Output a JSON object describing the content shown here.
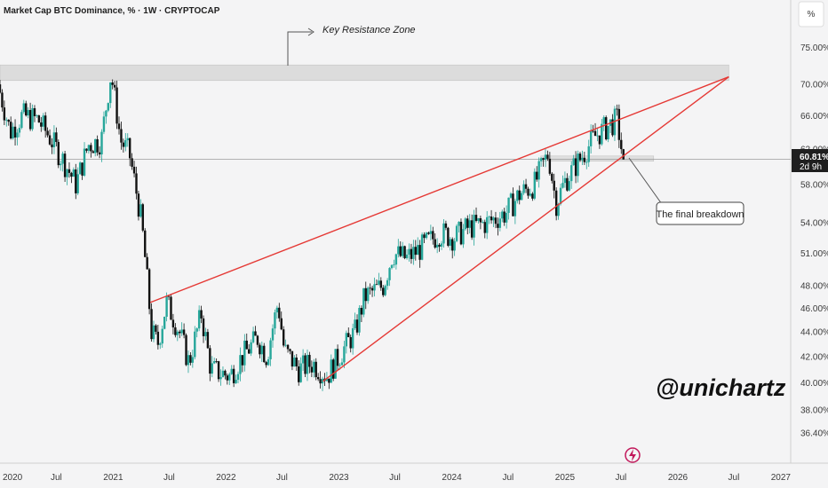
{
  "header": {
    "title": "Market Cap BTC Dominance, % · 1W · CRYPTOCAP"
  },
  "scale_button": {
    "label": "%"
  },
  "annotations": {
    "resistance_label": "Key Resistance Zone",
    "breakdown_label": "The final breakdown",
    "watermark": "@unichartz"
  },
  "price_tag": {
    "value": "60.81%",
    "countdown": "2d 9h"
  },
  "colors": {
    "up": "#26a69a",
    "down": "#111111",
    "trendline": "#e53935",
    "zone": "#d9d9d9",
    "price_tag_bg": "#1f1f1f",
    "lightning": "#c2185b"
  },
  "chart_data": {
    "type": "candlestick",
    "title": "Market Cap BTC Dominance, % · 1W · CRYPTOCAP",
    "y_scale": "log",
    "ylim": [
      34.4,
      82.0
    ],
    "xlim": [
      "2020-01-01",
      "2027-01-01"
    ],
    "y_ticks": [
      "75.00%",
      "70.00%",
      "66.00%",
      "62.00%",
      "58.00%",
      "54.00%",
      "51.00%",
      "48.00%",
      "46.00%",
      "44.00%",
      "42.00%",
      "40.00%",
      "38.00%",
      "36.40%"
    ],
    "x_ticks": [
      "2020",
      "Jul",
      "2021",
      "Jul",
      "2022",
      "Jul",
      "2023",
      "Jul",
      "2024",
      "Jul",
      "2025",
      "Jul",
      "2026",
      "Jul",
      "2027"
    ],
    "anchor_points": [
      [
        "2020-01-01",
        70.0
      ],
      [
        "2020-02-10",
        64.0
      ],
      [
        "2020-03-20",
        66.0
      ],
      [
        "2020-05-10",
        65.5
      ],
      [
        "2020-06-15",
        63.5
      ],
      [
        "2020-08-10",
        60.0
      ],
      [
        "2020-09-10",
        58.0
      ],
      [
        "2020-10-20",
        62.5
      ],
      [
        "2020-12-01",
        63.0
      ],
      [
        "2021-01-01",
        71.5
      ],
      [
        "2021-02-01",
        63.0
      ],
      [
        "2021-03-01",
        61.5
      ],
      [
        "2021-04-10",
        54.0
      ],
      [
        "2021-05-12",
        44.0
      ],
      [
        "2021-06-01",
        43.0
      ],
      [
        "2021-06-30",
        46.5
      ],
      [
        "2021-08-10",
        44.0
      ],
      [
        "2021-09-10",
        41.5
      ],
      [
        "2021-10-20",
        45.5
      ],
      [
        "2021-11-20",
        41.0
      ],
      [
        "2022-01-20",
        40.5
      ],
      [
        "2022-03-01",
        42.0
      ],
      [
        "2022-04-20",
        43.5
      ],
      [
        "2022-05-20",
        42.0
      ],
      [
        "2022-06-25",
        46.5
      ],
      [
        "2022-07-15",
        42.5
      ],
      [
        "2022-09-01",
        41.0
      ],
      [
        "2022-10-15",
        41.5
      ],
      [
        "2022-12-01",
        40.5
      ],
      [
        "2023-01-20",
        42.5
      ],
      [
        "2023-03-01",
        44.0
      ],
      [
        "2023-04-01",
        47.0
      ],
      [
        "2023-06-01",
        48.0
      ],
      [
        "2023-07-01",
        51.0
      ],
      [
        "2023-08-15",
        50.5
      ],
      [
        "2023-10-01",
        51.5
      ],
      [
        "2023-12-01",
        53.0
      ],
      [
        "2024-01-15",
        52.5
      ],
      [
        "2024-03-01",
        53.5
      ],
      [
        "2024-05-01",
        54.0
      ],
      [
        "2024-07-01",
        55.0
      ],
      [
        "2024-08-15",
        57.0
      ],
      [
        "2024-10-01",
        58.0
      ],
      [
        "2024-11-15",
        61.5
      ],
      [
        "2024-12-10",
        56.0
      ],
      [
        "2025-01-10",
        58.5
      ],
      [
        "2025-03-01",
        61.0
      ],
      [
        "2025-04-15",
        63.5
      ],
      [
        "2025-05-20",
        64.5
      ],
      [
        "2025-06-25",
        65.5
      ],
      [
        "2025-07-15",
        60.81
      ]
    ],
    "trendlines": [
      {
        "name": "upper",
        "from": [
          "2021-05-01",
          46.5
        ],
        "to": [
          "2026-06-15",
          71.0
        ]
      },
      {
        "name": "lower",
        "from": [
          "2022-11-10",
          40.1
        ],
        "to": [
          "2026-06-15",
          71.0
        ]
      }
    ],
    "zones": [
      {
        "name": "Key Resistance Zone",
        "y": [
          70.5,
          72.6
        ],
        "x": [
          "2020-01-01",
          "2026-06-15"
        ]
      },
      {
        "name": "breakdown-zone",
        "y": [
          60.6,
          61.2
        ],
        "x": [
          "2024-10-15",
          "2025-10-15"
        ]
      }
    ],
    "last_price": 60.81
  }
}
